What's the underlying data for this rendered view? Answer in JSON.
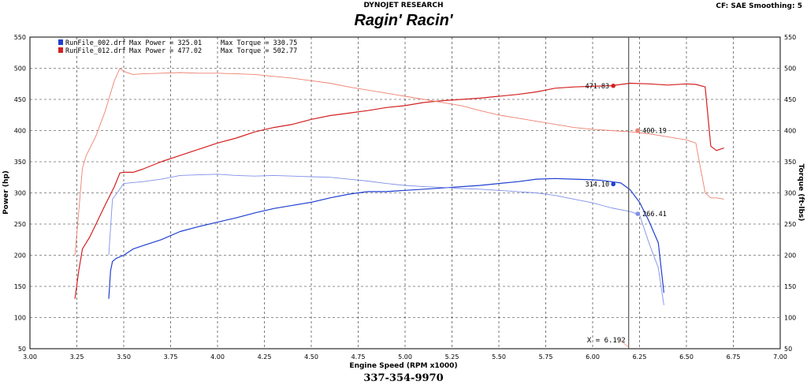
{
  "header": {
    "company": "DYNOJET RESEARCH",
    "settings": "CF: SAE  Smoothing: 5",
    "title": "Ragin' Racin'",
    "footer": "337-354-9970"
  },
  "colors": {
    "run1_power": "#1f3fd0",
    "run1_torque": "#8090e8",
    "run2_power": "#d42020",
    "run2_torque": "#ee8070",
    "cursor_line": "#555555"
  },
  "chart_data": {
    "type": "line",
    "xlabel": "Engine Speed (RPM x1000)",
    "ylabel_left": "Power (hp)",
    "ylabel_right": "Torque (ft-lbs)",
    "xlim": [
      3.0,
      7.0
    ],
    "ylim": [
      50,
      550
    ],
    "x_ticks": [
      "3.00",
      "3.25",
      "3.50",
      "3.75",
      "4.00",
      "4.25",
      "4.50",
      "4.75",
      "5.00",
      "5.25",
      "5.50",
      "5.75",
      "6.00",
      "6.25",
      "6.50",
      "6.75",
      "7.00"
    ],
    "y_ticks": [
      "50",
      "100",
      "150",
      "200",
      "250",
      "300",
      "350",
      "400",
      "450",
      "500",
      "550"
    ],
    "grid": true,
    "legend": [
      {
        "file": "RunFile_002.drf",
        "max_power_label": "Max Power = 325.01",
        "max_torque_label": "Max Torque = 330.75",
        "color": "#1f3fd0"
      },
      {
        "file": "RunFile_012.drf",
        "max_power_label": "Max Power = 477.02",
        "max_torque_label": "Max Torque = 502.77",
        "color": "#d42020"
      }
    ],
    "cursor": {
      "x": 6.192,
      "label": "X = 6.192"
    },
    "series": [
      {
        "name": "RunFile_002.drf Power",
        "unit": "hp",
        "color": "#1f3fd0",
        "x": [
          3.42,
          3.43,
          3.44,
          3.46,
          3.5,
          3.55,
          3.6,
          3.7,
          3.8,
          3.9,
          4.0,
          4.1,
          4.2,
          4.3,
          4.4,
          4.5,
          4.6,
          4.7,
          4.8,
          4.9,
          5.0,
          5.1,
          5.2,
          5.3,
          5.4,
          5.5,
          5.6,
          5.7,
          5.8,
          5.9,
          6.0,
          6.05,
          6.1,
          6.15,
          6.2,
          6.25,
          6.3,
          6.35,
          6.38
        ],
        "y": [
          130,
          175,
          190,
          195,
          200,
          210,
          215,
          225,
          238,
          246,
          253,
          260,
          268,
          275,
          280,
          285,
          292,
          298,
          302,
          302,
          304,
          306,
          308,
          310,
          312,
          315,
          318,
          322,
          323,
          322,
          321,
          320,
          318,
          316,
          305,
          285,
          255,
          220,
          140
        ]
      },
      {
        "name": "RunFile_002.drf Torque",
        "unit": "ft-lbs",
        "color": "#8090e8",
        "x": [
          3.42,
          3.44,
          3.46,
          3.5,
          3.6,
          3.7,
          3.8,
          3.9,
          4.0,
          4.1,
          4.2,
          4.3,
          4.4,
          4.5,
          4.6,
          4.7,
          4.8,
          4.9,
          5.0,
          5.1,
          5.2,
          5.3,
          5.4,
          5.5,
          5.6,
          5.7,
          5.8,
          5.9,
          6.0,
          6.1,
          6.2,
          6.25,
          6.3,
          6.35,
          6.38
        ],
        "y": [
          200,
          290,
          298,
          315,
          318,
          322,
          328,
          329,
          330,
          328,
          327,
          328,
          327,
          326,
          325,
          322,
          319,
          315,
          312,
          310,
          309,
          307,
          306,
          304,
          302,
          300,
          296,
          290,
          284,
          276,
          270,
          265,
          220,
          180,
          120
        ]
      },
      {
        "name": "RunFile_012.drf Power",
        "unit": "hp",
        "color": "#d42020",
        "x": [
          3.24,
          3.26,
          3.28,
          3.32,
          3.36,
          3.4,
          3.45,
          3.48,
          3.5,
          3.55,
          3.6,
          3.7,
          3.8,
          3.9,
          4.0,
          4.1,
          4.2,
          4.3,
          4.4,
          4.5,
          4.6,
          4.7,
          4.8,
          4.9,
          5.0,
          5.1,
          5.2,
          5.3,
          5.4,
          5.5,
          5.6,
          5.7,
          5.8,
          5.9,
          6.0,
          6.1,
          6.2,
          6.3,
          6.4,
          6.5,
          6.55,
          6.6,
          6.63,
          6.66,
          6.7
        ],
        "y": [
          130,
          175,
          210,
          230,
          255,
          280,
          310,
          332,
          333,
          333,
          338,
          350,
          360,
          370,
          380,
          388,
          398,
          405,
          410,
          418,
          424,
          428,
          432,
          437,
          440,
          445,
          448,
          450,
          452,
          455,
          458,
          462,
          468,
          470,
          471,
          472,
          476,
          475,
          473,
          475,
          474,
          470,
          375,
          368,
          372
        ]
      },
      {
        "name": "RunFile_012.drf Torque",
        "unit": "ft-lbs",
        "color": "#ee8070",
        "x": [
          3.24,
          3.26,
          3.28,
          3.3,
          3.35,
          3.4,
          3.45,
          3.48,
          3.5,
          3.55,
          3.6,
          3.7,
          3.8,
          3.9,
          4.0,
          4.1,
          4.2,
          4.3,
          4.4,
          4.5,
          4.6,
          4.7,
          4.8,
          4.9,
          5.0,
          5.1,
          5.2,
          5.3,
          5.4,
          5.5,
          5.6,
          5.7,
          5.8,
          5.9,
          6.0,
          6.1,
          6.2,
          6.3,
          6.4,
          6.5,
          6.55,
          6.6,
          6.63,
          6.66,
          6.7
        ],
        "y": [
          200,
          270,
          340,
          360,
          390,
          430,
          480,
          500,
          495,
          490,
          491,
          492,
          493,
          492,
          492,
          491,
          490,
          487,
          484,
          480,
          476,
          470,
          465,
          460,
          455,
          450,
          445,
          440,
          432,
          425,
          420,
          415,
          410,
          405,
          402,
          400,
          398,
          395,
          390,
          385,
          380,
          300,
          292,
          292,
          290
        ]
      }
    ],
    "data_labels": [
      {
        "text": "471.83",
        "x": 6.11,
        "y": 471.83,
        "color": "#d42020"
      },
      {
        "text": "400.19",
        "x": 6.24,
        "y": 400.19,
        "color": "#ee8070"
      },
      {
        "text": "314.10",
        "x": 6.11,
        "y": 314.1,
        "color": "#1f3fd0"
      },
      {
        "text": "266.41",
        "x": 6.24,
        "y": 266.41,
        "color": "#8090e8"
      }
    ]
  }
}
